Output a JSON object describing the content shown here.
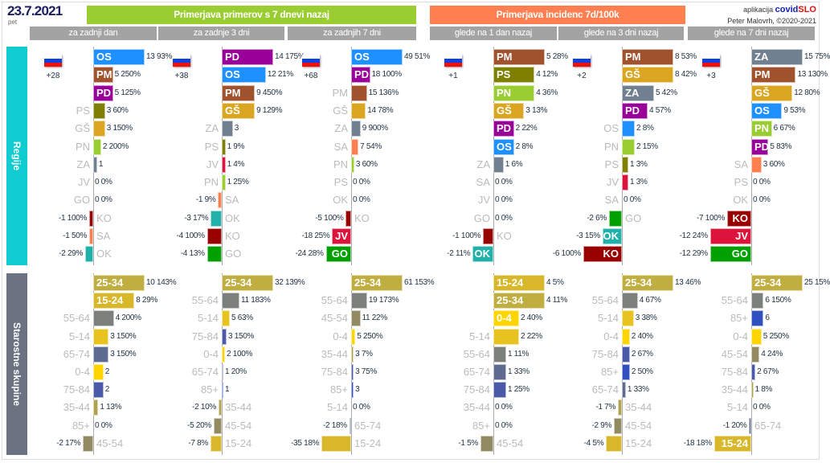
{
  "header": {
    "date": "23.7.2021",
    "weekday": "pet",
    "title_cases": "Primerjava primerov s 7 dnevi nazaj",
    "title_incidence": "Primerjava incidenc 7d/100k",
    "credit_app": "aplikacija",
    "brand_a": "covid",
    "brand_b": "SLO",
    "credit_author": "Peter Malovrh, ©2020-2021"
  },
  "subheaders": [
    "za zadnji dan",
    "za zadnje 3 dni",
    "za zadnjih 7 dni",
    "glede na 1 dan nazaj",
    "glede na 3 dni nazaj",
    "glede na 7 dni nazaj"
  ],
  "sections": {
    "regions": "Regije",
    "ages": "Starostne skupine"
  },
  "colors": {
    "cases_header": "#9acd32",
    "incidence_header": "#ff7f50",
    "regions_side": "#10ccd0",
    "ages_side": "#6b7383",
    "OS": "#1e90ff",
    "PM": "#a0522d",
    "PD": "#990099",
    "PS": "#808000",
    "GŠ": "#daa520",
    "PN": "#9acd32",
    "ZA": "#708090",
    "JV": "#dc143c",
    "GO": "#00a000",
    "KO": "#990000",
    "SA": "#ff7f50",
    "OK": "#20b2aa",
    "25-34": "#c0ae40",
    "15-24": "#d8b82a",
    "55-64": "#7b807c",
    "5-14": "#e8c320",
    "65-74": "#5f6b90",
    "0-4": "#ffd500",
    "75-84": "#4a5aa8",
    "35-44": "#b0a24c",
    "85+": "#3050c0",
    "45-54": "#918a62"
  },
  "panels": [
    {
      "flag_count": "+28",
      "regions": [
        [
          "OS",
          13,
          "93%"
        ],
        [
          "PM",
          5,
          "250%"
        ],
        [
          "PD",
          5,
          "125%"
        ],
        [
          "PS",
          3,
          "60%"
        ],
        [
          "GŠ",
          3,
          "150%"
        ],
        [
          "PN",
          2,
          "200%"
        ],
        [
          "ZA",
          1,
          ""
        ],
        [
          "JV",
          0,
          "0%"
        ],
        [
          "GO",
          0,
          "0%"
        ],
        [
          "KO",
          -1,
          "100%"
        ],
        [
          "SA",
          -1,
          "50%"
        ],
        [
          "OK",
          -2,
          "29%"
        ]
      ],
      "ages": [
        [
          "25-34",
          10,
          "143%"
        ],
        [
          "15-24",
          8,
          "29%"
        ],
        [
          "55-64",
          4,
          "200%"
        ],
        [
          "5-14",
          3,
          "150%"
        ],
        [
          "65-74",
          3,
          "150%"
        ],
        [
          "0-4",
          2,
          ""
        ],
        [
          "75-84",
          2,
          ""
        ],
        [
          "35-44",
          1,
          "13%"
        ],
        [
          "85+",
          0,
          "0%"
        ],
        [
          "45-54",
          -2,
          "17%"
        ]
      ]
    },
    {
      "flag_count": "+38",
      "regions": [
        [
          "PD",
          14,
          "175%"
        ],
        [
          "OS",
          12,
          "21%"
        ],
        [
          "PM",
          9,
          "450%"
        ],
        [
          "GŠ",
          9,
          "129%"
        ],
        [
          "ZA",
          3,
          ""
        ],
        [
          "PS",
          1,
          "9%"
        ],
        [
          "JV",
          1,
          "4%"
        ],
        [
          "PN",
          1,
          "25%"
        ],
        [
          "SA",
          -1,
          "9%"
        ],
        [
          "OK",
          -3,
          "17%"
        ],
        [
          "KO",
          -4,
          "100%"
        ],
        [
          "GO",
          -4,
          "13%"
        ]
      ],
      "ages": [
        [
          "25-34",
          32,
          "139%"
        ],
        [
          "55-64",
          11,
          "183%"
        ],
        [
          "5-14",
          5,
          "63%"
        ],
        [
          "75-84",
          3,
          "150%"
        ],
        [
          "0-4",
          2,
          "100%"
        ],
        [
          "65-74",
          1,
          "20%"
        ],
        [
          "85+",
          1,
          ""
        ],
        [
          "35-44",
          -2,
          "10%"
        ],
        [
          "45-54",
          -5,
          "20%"
        ],
        [
          "15-24",
          -7,
          "8%"
        ]
      ]
    },
    {
      "flag_count": "+68",
      "regions": [
        [
          "OS",
          49,
          "51%"
        ],
        [
          "PD",
          18,
          "100%"
        ],
        [
          "PM",
          15,
          "136%"
        ],
        [
          "GŠ",
          14,
          "78%"
        ],
        [
          "ZA",
          9,
          "900%"
        ],
        [
          "SA",
          7,
          "54%"
        ],
        [
          "PN",
          3,
          "60%"
        ],
        [
          "PS",
          0,
          "0%"
        ],
        [
          "OK",
          0,
          "0%"
        ],
        [
          "KO",
          -5,
          "100%"
        ],
        [
          "JV",
          -18,
          "25%"
        ],
        [
          "GO",
          -24,
          "28%"
        ]
      ],
      "ages": [
        [
          "25-34",
          61,
          "153%"
        ],
        [
          "55-64",
          19,
          "173%"
        ],
        [
          "45-54",
          11,
          "22%"
        ],
        [
          "0-4",
          5,
          "250%"
        ],
        [
          "35-44",
          3,
          "7%"
        ],
        [
          "75-84",
          3,
          "75%"
        ],
        [
          "85+",
          3,
          ""
        ],
        [
          "5-14",
          0,
          "0%"
        ],
        [
          "65-74",
          -2,
          "18%"
        ],
        [
          "15-24",
          -35,
          "18%"
        ]
      ]
    },
    {
      "flag_count": "+1",
      "regions": [
        [
          "PM",
          5,
          "28%"
        ],
        [
          "PS",
          4,
          "12%"
        ],
        [
          "PN",
          4,
          "36%"
        ],
        [
          "GŠ",
          3,
          "13%"
        ],
        [
          "PD",
          2,
          "22%"
        ],
        [
          "OS",
          2,
          "8%"
        ],
        [
          "ZA",
          1,
          "6%"
        ],
        [
          "SA",
          0,
          "0%"
        ],
        [
          "JV",
          0,
          "0%"
        ],
        [
          "GO",
          0,
          "0%"
        ],
        [
          "KO",
          -1,
          "100%"
        ],
        [
          "OK",
          -2,
          "11%"
        ]
      ],
      "ages": [
        [
          "15-24",
          4,
          "5%"
        ],
        [
          "25-34",
          4,
          "11%"
        ],
        [
          "0-4",
          2,
          "40%"
        ],
        [
          "5-14",
          2,
          "22%"
        ],
        [
          "55-64",
          1,
          "11%"
        ],
        [
          "65-74",
          1,
          "33%"
        ],
        [
          "75-84",
          1,
          "25%"
        ],
        [
          "35-44",
          0,
          "0%"
        ],
        [
          "85+",
          0,
          "0%"
        ],
        [
          "45-54",
          -1,
          "5%"
        ]
      ]
    },
    {
      "flag_count": "+2",
      "regions": [
        [
          "PM",
          8,
          "53%"
        ],
        [
          "GŠ",
          8,
          "42%"
        ],
        [
          "ZA",
          5,
          "42%"
        ],
        [
          "PD",
          4,
          "57%"
        ],
        [
          "OS",
          2,
          "8%"
        ],
        [
          "PN",
          2,
          "15%"
        ],
        [
          "PS",
          1,
          "3%"
        ],
        [
          "JV",
          1,
          "3%"
        ],
        [
          "SA",
          0,
          "0%"
        ],
        [
          "GO",
          -2,
          "6%"
        ],
        [
          "OK",
          -3,
          "15%"
        ],
        [
          "KO",
          -6,
          "100%"
        ]
      ],
      "ages": [
        [
          "25-34",
          13,
          "46%"
        ],
        [
          "55-64",
          4,
          "67%"
        ],
        [
          "5-14",
          3,
          "38%"
        ],
        [
          "0-4",
          2,
          "40%"
        ],
        [
          "75-84",
          2,
          "67%"
        ],
        [
          "85+",
          2,
          "50%"
        ],
        [
          "65-74",
          1,
          "33%"
        ],
        [
          "35-44",
          -1,
          "7%"
        ],
        [
          "45-54",
          -2,
          "9%"
        ],
        [
          "15-24",
          -4,
          "5%"
        ]
      ]
    },
    {
      "flag_count": "+3",
      "regions": [
        [
          "ZA",
          15,
          "75%"
        ],
        [
          "PM",
          13,
          "130%"
        ],
        [
          "GŠ",
          12,
          "80%"
        ],
        [
          "OS",
          9,
          "53%"
        ],
        [
          "PN",
          6,
          "67%"
        ],
        [
          "PD",
          5,
          "83%"
        ],
        [
          "SA",
          3,
          "60%"
        ],
        [
          "PS",
          0,
          "0%"
        ],
        [
          "OK",
          0,
          "0%"
        ],
        [
          "KO",
          -7,
          "100%"
        ],
        [
          "JV",
          -12,
          "24%"
        ],
        [
          "GO",
          -12,
          "29%"
        ]
      ],
      "ages": [
        [
          "25-34",
          25,
          "15%"
        ],
        [
          "55-64",
          6,
          "150%"
        ],
        [
          "85+",
          6,
          ""
        ],
        [
          "0-4",
          5,
          "250%"
        ],
        [
          "45-54",
          4,
          "24%"
        ],
        [
          "75-84",
          2,
          "67%"
        ],
        [
          "35-44",
          1,
          "8%"
        ],
        [
          "5-14",
          0,
          "0%"
        ],
        [
          "65-74",
          -1,
          "20%"
        ],
        [
          "15-24",
          -18,
          "18%"
        ]
      ]
    }
  ]
}
